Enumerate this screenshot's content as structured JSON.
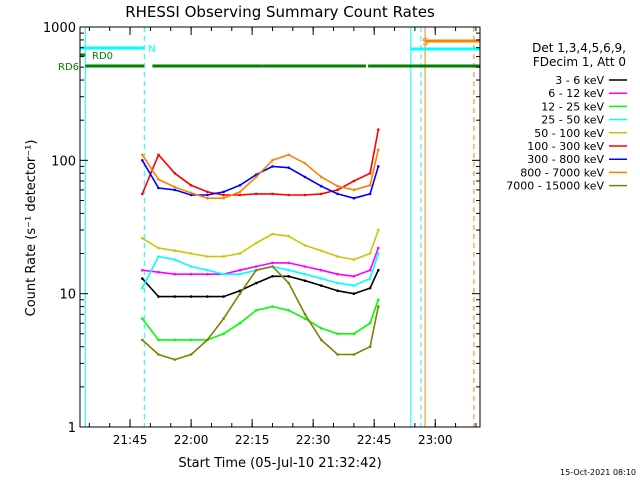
{
  "chart_data": {
    "type": "line",
    "title": "RHESSI Observing Summary Count Rates",
    "xlabel": "Start Time (05-Jul-10 21:32:42)",
    "ylabel": "Count Rate (s⁻¹ detector⁻¹)",
    "y_scale": "log",
    "ylim": [
      1,
      1000
    ],
    "y_ticks": [
      "1",
      "10",
      "100",
      "1000"
    ],
    "xlim": [
      "21:32:42",
      "23:11:00"
    ],
    "x_ticks": [
      "21:45",
      "22:00",
      "22:15",
      "22:30",
      "22:45",
      "23:00"
    ],
    "timestamp": "15-Oct-2021 08:10",
    "legend_header": [
      "Det 1,3,4,5,6,9,",
      "FDecim 1, Att 0"
    ],
    "flags": [
      {
        "label": "RD0",
        "color": "#008000",
        "segments": [
          [
            "21:32:42",
            "21:34:00"
          ]
        ]
      },
      {
        "label": "RD6",
        "color": "#008000",
        "segments": [
          [
            "21:34:00",
            "21:48:30"
          ],
          [
            "21:50:30",
            "22:17:30"
          ],
          [
            "22:17:30",
            "22:43:00"
          ],
          [
            "22:43:30",
            "23:11:00"
          ]
        ]
      },
      {
        "label": "N",
        "color": "#00ffff",
        "segments": [
          [
            "21:32:42",
            "21:48:30"
          ]
        ]
      },
      {
        "label": "S",
        "color": "#ff8000",
        "segments": [
          [
            "22:57:30",
            "23:11:00"
          ]
        ]
      },
      {
        "label": "",
        "color": "#00ffff",
        "segments": [
          [
            "22:54:00",
            "23:11:00"
          ]
        ]
      }
    ],
    "vlines": [
      {
        "t": "21:34:00",
        "color": "#00ffff",
        "style": "solid"
      },
      {
        "t": "21:48:30",
        "color": "#00ffff",
        "style": "dashed"
      },
      {
        "t": "22:54:00",
        "color": "#00ffff",
        "style": "solid"
      },
      {
        "t": "22:56:30",
        "color": "#00ffff",
        "style": "dashed"
      },
      {
        "t": "22:57:30",
        "color": "#ff8000",
        "style": "solid"
      },
      {
        "t": "23:09:30",
        "color": "#ff8000",
        "style": "dashed"
      }
    ],
    "series": [
      {
        "name": "3 - 6 keV",
        "color": "#000000",
        "values": [
          [
            21,
            13
          ],
          [
            22,
            9.5
          ],
          [
            23,
            9.5
          ],
          [
            24,
            9.5
          ],
          [
            25,
            9.5
          ],
          [
            26,
            9.5
          ],
          [
            27,
            10.5
          ],
          [
            28,
            12
          ],
          [
            29,
            13.5
          ],
          [
            30,
            13.5
          ],
          [
            31,
            12.5
          ],
          [
            32,
            11.5
          ],
          [
            33,
            10.5
          ],
          [
            34,
            10
          ],
          [
            35,
            11
          ],
          [
            35.5,
            15
          ]
        ]
      },
      {
        "name": "6 - 12 keV",
        "color": "#ff00ff",
        "values": [
          [
            21,
            15
          ],
          [
            22,
            14.5
          ],
          [
            23,
            14
          ],
          [
            24,
            14
          ],
          [
            25,
            14
          ],
          [
            26,
            14
          ],
          [
            27,
            15
          ],
          [
            28,
            16
          ],
          [
            29,
            17
          ],
          [
            30,
            17
          ],
          [
            31,
            16
          ],
          [
            32,
            15
          ],
          [
            33,
            14
          ],
          [
            34,
            13.5
          ],
          [
            35,
            15
          ],
          [
            35.5,
            22
          ]
        ]
      },
      {
        "name": "12 - 25 keV",
        "color": "#00ff00",
        "values": [
          [
            21,
            6.5
          ],
          [
            22,
            4.5
          ],
          [
            23,
            4.5
          ],
          [
            24,
            4.5
          ],
          [
            25,
            4.5
          ],
          [
            26,
            5
          ],
          [
            27,
            6
          ],
          [
            28,
            7.5
          ],
          [
            29,
            8
          ],
          [
            30,
            7.5
          ],
          [
            31,
            6.5
          ],
          [
            32,
            5.5
          ],
          [
            33,
            5
          ],
          [
            34,
            5
          ],
          [
            35,
            6
          ],
          [
            35.5,
            9
          ]
        ]
      },
      {
        "name": "25 - 50 keV",
        "color": "#00ffff",
        "values": [
          [
            21,
            11
          ],
          [
            22,
            19
          ],
          [
            23,
            18
          ],
          [
            24,
            16
          ],
          [
            25,
            15
          ],
          [
            26,
            14
          ],
          [
            27,
            14
          ],
          [
            28,
            15
          ],
          [
            29,
            16
          ],
          [
            30,
            15
          ],
          [
            31,
            14
          ],
          [
            32,
            13
          ],
          [
            33,
            12
          ],
          [
            34,
            11.5
          ],
          [
            35,
            13
          ],
          [
            35.5,
            20
          ]
        ]
      },
      {
        "name": "50 - 100 keV",
        "color": "#c8c800",
        "values": [
          [
            21,
            26
          ],
          [
            22,
            22
          ],
          [
            23,
            21
          ],
          [
            24,
            20
          ],
          [
            25,
            19
          ],
          [
            26,
            19
          ],
          [
            27,
            20
          ],
          [
            28,
            24
          ],
          [
            29,
            28
          ],
          [
            30,
            27
          ],
          [
            31,
            23
          ],
          [
            32,
            21
          ],
          [
            33,
            19
          ],
          [
            34,
            18
          ],
          [
            35,
            20
          ],
          [
            35.5,
            30
          ]
        ]
      },
      {
        "name": "100 - 300 keV",
        "color": "#ff0000",
        "values": [
          [
            21,
            56
          ],
          [
            22,
            110
          ],
          [
            23,
            80
          ],
          [
            24,
            65
          ],
          [
            25,
            58
          ],
          [
            26,
            55
          ],
          [
            27,
            55
          ],
          [
            28,
            56
          ],
          [
            29,
            56
          ],
          [
            30,
            55
          ],
          [
            31,
            55
          ],
          [
            32,
            56
          ],
          [
            33,
            60
          ],
          [
            34,
            70
          ],
          [
            35,
            80
          ],
          [
            35.5,
            170
          ]
        ]
      },
      {
        "name": "300 - 800 keV",
        "color": "#0000ff",
        "values": [
          [
            21,
            100
          ],
          [
            22,
            62
          ],
          [
            23,
            60
          ],
          [
            24,
            55
          ],
          [
            25,
            55
          ],
          [
            26,
            58
          ],
          [
            27,
            65
          ],
          [
            28,
            78
          ],
          [
            29,
            90
          ],
          [
            30,
            88
          ],
          [
            31,
            75
          ],
          [
            32,
            64
          ],
          [
            33,
            56
          ],
          [
            34,
            52
          ],
          [
            35,
            56
          ],
          [
            35.5,
            90
          ]
        ]
      },
      {
        "name": "800 - 7000 keV",
        "color": "#ff8000",
        "values": [
          [
            21,
            110
          ],
          [
            22,
            72
          ],
          [
            23,
            63
          ],
          [
            24,
            57
          ],
          [
            25,
            52
          ],
          [
            26,
            52
          ],
          [
            27,
            58
          ],
          [
            28,
            75
          ],
          [
            29,
            100
          ],
          [
            30,
            110
          ],
          [
            31,
            95
          ],
          [
            32,
            75
          ],
          [
            33,
            64
          ],
          [
            34,
            60
          ],
          [
            35,
            65
          ],
          [
            35.5,
            120
          ]
        ]
      },
      {
        "name": "7000 - 15000 keV",
        "color": "#808000",
        "values": [
          [
            21,
            4.5
          ],
          [
            22,
            3.5
          ],
          [
            23,
            3.2
          ],
          [
            24,
            3.5
          ],
          [
            25,
            4.5
          ],
          [
            26,
            6.5
          ],
          [
            27,
            10
          ],
          [
            28,
            15
          ],
          [
            29,
            16
          ],
          [
            30,
            12
          ],
          [
            31,
            7
          ],
          [
            32,
            4.5
          ],
          [
            33,
            3.5
          ],
          [
            34,
            3.5
          ],
          [
            35,
            4
          ],
          [
            35.5,
            8
          ]
        ]
      }
    ]
  }
}
